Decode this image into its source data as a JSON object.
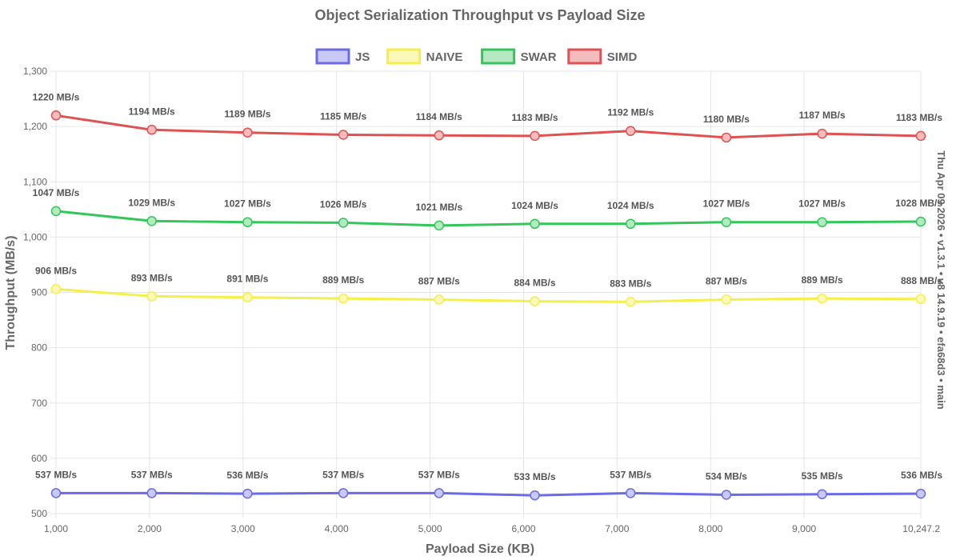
{
  "chart_data": {
    "type": "line",
    "title": "Object Serialization Throughput vs Payload Size",
    "xlabel": "Payload Size (KB)",
    "ylabel": "Throughput (MB/s)",
    "side_note": "Thu Apr 09 2026 • v1.3.1 • v8 14.9.19 • efa68d3 • main",
    "xlim": [
      1000,
      10247.2
    ],
    "ylim": [
      500,
      1300
    ],
    "x_ticks": [
      1000,
      2000,
      3000,
      4000,
      5000,
      6000,
      7000,
      8000,
      9000,
      10247.2
    ],
    "x_tick_labels": [
      "1,000",
      "2,000",
      "3,000",
      "4,000",
      "5,000",
      "6,000",
      "7,000",
      "8,000",
      "9,000",
      "10,247.2"
    ],
    "y_ticks": [
      500,
      600,
      700,
      800,
      900,
      1000,
      1100,
      1200,
      1300
    ],
    "y_tick_labels": [
      "500",
      "600",
      "700",
      "800",
      "900",
      "1,000",
      "1,100",
      "1,200",
      "1,300"
    ],
    "grid": true,
    "legend_position": "top-center",
    "x": [
      1000,
      2024,
      3048,
      4072,
      5096,
      6120,
      7144,
      8168,
      9192,
      10247.2
    ],
    "value_suffix": " MB/s",
    "series": [
      {
        "name": "JS",
        "color": "#6b6be8",
        "fill": "#c9c9f7",
        "values": [
          537,
          537,
          536,
          537,
          537,
          533,
          537,
          534,
          535,
          536
        ]
      },
      {
        "name": "NAIVE",
        "color": "#f5ef4a",
        "fill": "#fbf8b8",
        "values": [
          906,
          893,
          891,
          889,
          887,
          884,
          883,
          887,
          889,
          888
        ]
      },
      {
        "name": "SWAR",
        "color": "#33c75a",
        "fill": "#b4e9c1",
        "values": [
          1047,
          1029,
          1027,
          1026,
          1021,
          1024,
          1024,
          1027,
          1027,
          1028
        ]
      },
      {
        "name": "SIMD",
        "color": "#e05252",
        "fill": "#f4bcbc",
        "values": [
          1220,
          1194,
          1189,
          1185,
          1184,
          1183,
          1192,
          1180,
          1187,
          1183
        ]
      }
    ]
  }
}
